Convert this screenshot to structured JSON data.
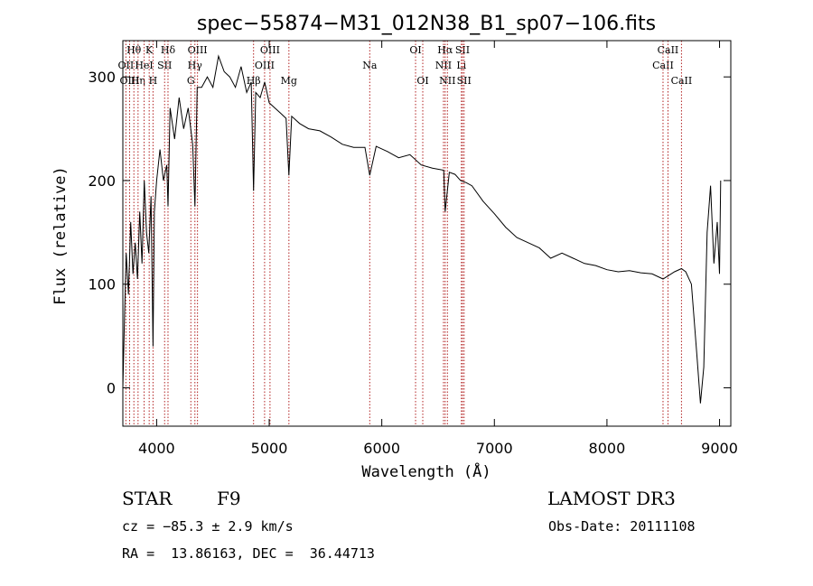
{
  "chart_data": {
    "type": "line",
    "title": "spec−55874−M31_012N38_B1_sp07−106.fits",
    "xlabel": "Wavelength (Å)",
    "ylabel": "Flux (relative)",
    "xlim": [
      3700,
      9100
    ],
    "ylim": [
      -37,
      335
    ],
    "xticks": [
      4000,
      5000,
      6000,
      7000,
      8000,
      9000
    ],
    "yticks": [
      0,
      100,
      200,
      300
    ],
    "series": [
      {
        "name": "flux",
        "x": [
          3700,
          3715,
          3730,
          3750,
          3770,
          3790,
          3810,
          3830,
          3850,
          3870,
          3890,
          3910,
          3930,
          3950,
          3968,
          3980,
          4000,
          4030,
          4060,
          4090,
          4101,
          4120,
          4160,
          4200,
          4240,
          4280,
          4320,
          4340,
          4360,
          4400,
          4450,
          4500,
          4550,
          4600,
          4650,
          4700,
          4750,
          4800,
          4840,
          4861,
          4880,
          4920,
          4960,
          5000,
          5050,
          5100,
          5150,
          5175,
          5200,
          5270,
          5350,
          5450,
          5550,
          5650,
          5750,
          5850,
          5893,
          5950,
          6050,
          6150,
          6250,
          6350,
          6450,
          6550,
          6563,
          6600,
          6650,
          6700,
          6750,
          6800,
          6900,
          7000,
          7100,
          7200,
          7300,
          7400,
          7500,
          7600,
          7700,
          7800,
          7900,
          8000,
          8100,
          8200,
          8300,
          8400,
          8498,
          8542,
          8600,
          8662,
          8700,
          8750,
          8800,
          8830,
          8860,
          8890,
          8920,
          8950,
          8980,
          9000,
          9010
        ],
        "y": [
          0,
          70,
          130,
          90,
          160,
          110,
          140,
          105,
          170,
          120,
          200,
          150,
          130,
          185,
          40,
          170,
          200,
          230,
          200,
          215,
          175,
          270,
          240,
          280,
          250,
          270,
          235,
          175,
          290,
          290,
          300,
          290,
          320,
          305,
          300,
          290,
          310,
          285,
          295,
          190,
          285,
          280,
          295,
          275,
          270,
          265,
          260,
          205,
          262,
          255,
          250,
          248,
          242,
          235,
          232,
          232,
          205,
          233,
          228,
          222,
          225,
          215,
          212,
          210,
          170,
          208,
          206,
          200,
          198,
          195,
          180,
          168,
          155,
          145,
          140,
          135,
          125,
          130,
          125,
          120,
          118,
          114,
          112,
          113,
          111,
          110,
          105,
          108,
          112,
          115,
          112,
          100,
          30,
          -15,
          20,
          150,
          195,
          120,
          160,
          110,
          200
        ]
      }
    ],
    "lines": [
      {
        "wl": 3727,
        "label": "OII",
        "row": 1
      },
      {
        "wl": 3760,
        "label": "OIII",
        "row": 2
      },
      {
        "wl": 3798,
        "label": "Hθ",
        "row": 0
      },
      {
        "wl": 3835,
        "label": "Hη",
        "row": 2
      },
      {
        "wl": 3889,
        "label": "HeI",
        "row": 1
      },
      {
        "wl": 3934,
        "label": "K",
        "row": 0
      },
      {
        "wl": 3968,
        "label": "H",
        "row": 2
      },
      {
        "wl": 4071,
        "label": "SII",
        "row": 1
      },
      {
        "wl": 4101,
        "label": "Hδ",
        "row": 0
      },
      {
        "wl": 4304,
        "label": "G",
        "row": 2
      },
      {
        "wl": 4340,
        "label": "Hγ",
        "row": 1
      },
      {
        "wl": 4363,
        "label": "OIII",
        "row": 0
      },
      {
        "wl": 4861,
        "label": "Hβ",
        "row": 2
      },
      {
        "wl": 4959,
        "label": "OIII",
        "row": 1
      },
      {
        "wl": 5007,
        "label": "OIII",
        "row": 0
      },
      {
        "wl": 5175,
        "label": "Mg",
        "row": 2
      },
      {
        "wl": 5893,
        "label": "Na",
        "row": 1
      },
      {
        "wl": 6300,
        "label": "OI",
        "row": 0
      },
      {
        "wl": 6364,
        "label": "OI",
        "row": 2
      },
      {
        "wl": 6548,
        "label": "NII",
        "row": 1
      },
      {
        "wl": 6563,
        "label": "Hα",
        "row": 0
      },
      {
        "wl": 6583,
        "label": "NII",
        "row": 2
      },
      {
        "wl": 6707,
        "label": "Li",
        "row": 1
      },
      {
        "wl": 6717,
        "label": "SII",
        "row": 0
      },
      {
        "wl": 6731,
        "label": "SII",
        "row": 2
      },
      {
        "wl": 8498,
        "label": "CaII",
        "row": 1
      },
      {
        "wl": 8542,
        "label": "CaII",
        "row": 0
      },
      {
        "wl": 8662,
        "label": "CaII",
        "row": 2
      }
    ]
  },
  "info": {
    "class_label": "STAR",
    "subclass": "F9",
    "survey": "LAMOST DR3",
    "cz": "cz = −85.3 ± 2.9 km/s",
    "obs_date": "Obs-Date: 20111108",
    "coords": "RA =  13.86163, DEC =  36.44713"
  }
}
